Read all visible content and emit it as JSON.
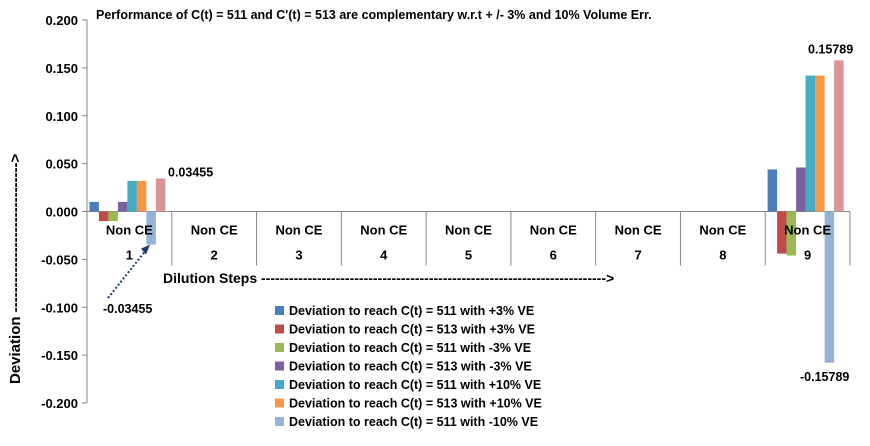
{
  "chart_data": {
    "type": "bar",
    "title": "Performance of C(t) = 511 and C'(t) = 513 are complementary w.r.t  + /- 3% and 10% Volume Err.",
    "ylabel": "Deviation ------------------------------>",
    "xlabel": "Dilution Steps -------------------------------------------------------------------------->",
    "ylim": [
      -0.2,
      0.2
    ],
    "yticks": [
      "0.200",
      "0.150",
      "0.100",
      "0.050",
      "0.000",
      "-0.050",
      "-0.100",
      "-0.150",
      "-0.200"
    ],
    "categories": [
      "1",
      "2",
      "3",
      "4",
      "5",
      "6",
      "7",
      "8",
      "9"
    ],
    "category_tags": [
      "Non CE",
      "Non CE",
      "Non CE",
      "Non CE",
      "Non CE",
      "Non CE",
      "Non CE",
      "Non CE",
      "Non CE"
    ],
    "series": [
      {
        "name": "Deviation to reach C(t) = 511 with +3% VE",
        "color": "#4a7ebb",
        "values": [
          0.01,
          0,
          0,
          0,
          0,
          0,
          0,
          0,
          0.044
        ]
      },
      {
        "name": "Deviation to reach C(t) = 513 with +3% VE",
        "color": "#be4b48",
        "values": [
          -0.01,
          0,
          0,
          0,
          0,
          0,
          0,
          0,
          -0.044
        ]
      },
      {
        "name": "Deviation to reach C(t) = 511 with -3% VE",
        "color": "#98b954",
        "values": [
          -0.01,
          0,
          0,
          0,
          0,
          0,
          0,
          0,
          -0.046
        ]
      },
      {
        "name": "Deviation to reach C(t) = 513 with -3% VE",
        "color": "#7d5fa0",
        "values": [
          0.01,
          0,
          0,
          0,
          0,
          0,
          0,
          0,
          0.046
        ]
      },
      {
        "name": "Deviation to reach C(t) = 511 with +10% VE",
        "color": "#46aac5",
        "values": [
          0.032,
          0,
          0,
          0,
          0,
          0,
          0,
          0,
          0.142
        ]
      },
      {
        "name": "Deviation to reach C(t) = 513 with +10% VE",
        "color": "#f79646",
        "values": [
          0.032,
          0,
          0,
          0,
          0,
          0,
          0,
          0,
          0.142
        ]
      },
      {
        "name": "Deviation to reach C(t) = 511 with -10% VE",
        "color": "#95b3d7",
        "values": [
          -0.03455,
          0,
          0,
          0,
          0,
          0,
          0,
          0,
          -0.15789
        ]
      },
      {
        "name": "",
        "color": "#d99694",
        "values": [
          0.03455,
          0,
          0,
          0,
          0,
          0,
          0,
          0,
          0.15789
        ]
      }
    ],
    "annotations": {
      "pos1": "0.03455",
      "neg1": "-0.03455",
      "pos9": "0.15789",
      "neg9": "-0.15789"
    },
    "grid": false,
    "legend_position": "bottom-center"
  }
}
